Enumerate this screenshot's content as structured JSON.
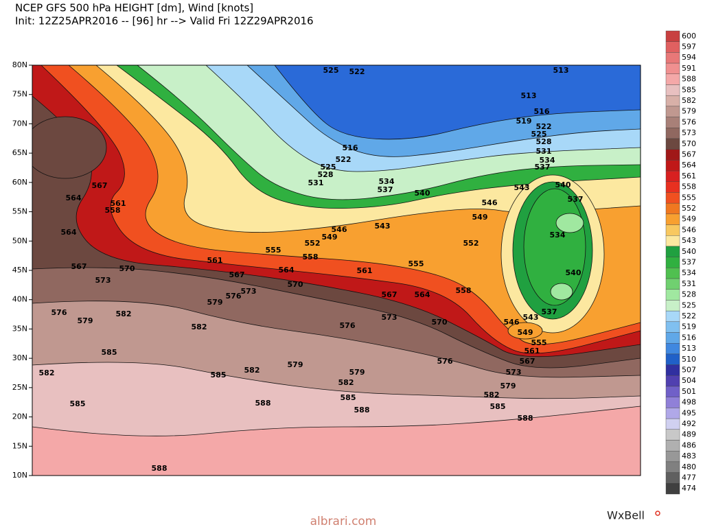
{
  "header": {
    "title": "NCEP GFS 500 hPa HEIGHT [dm], Wind [knots]",
    "subtitle": "Init: 12Z25APR2016 -- [96] hr --> Valid Fri 12Z29APR2016"
  },
  "latitudes": [
    "80N",
    "75N",
    "70N",
    "65N",
    "60N",
    "55N",
    "50N",
    "45N",
    "40N",
    "35N",
    "30N",
    "25N",
    "20N",
    "15N",
    "10N"
  ],
  "colorbar": {
    "levels": [
      600,
      597,
      594,
      591,
      588,
      585,
      582,
      579,
      576,
      573,
      570,
      567,
      564,
      561,
      558,
      555,
      552,
      549,
      546,
      543,
      540,
      537,
      534,
      531,
      528,
      525,
      522,
      519,
      516,
      513,
      510,
      507,
      504,
      501,
      498,
      495,
      492,
      489,
      486,
      483,
      480,
      477,
      474
    ],
    "colors": [
      "#c84040",
      "#e06060",
      "#e87878",
      "#f09090",
      "#f4a8a8",
      "#e8c0c0",
      "#d8b0a8",
      "#c09890",
      "#a88078",
      "#906860",
      "#6c4840",
      "#a01818",
      "#c01818",
      "#d82020",
      "#e83020",
      "#f05020",
      "#f07820",
      "#f8a030",
      "#f8c860",
      "#fce8a0",
      "#20a040",
      "#30b040",
      "#50c050",
      "#70d070",
      "#a0e8a0",
      "#c8f0c8",
      "#a8d8f8",
      "#80c0f0",
      "#60a8e8",
      "#4088e0",
      "#2060c8",
      "#3030a0",
      "#5040b0",
      "#7060c8",
      "#9080d8",
      "#b0a8e8",
      "#d0d0f0",
      "#c8c8c8",
      "#b0b0b0",
      "#989898",
      "#808080",
      "#606060",
      "#404040"
    ]
  },
  "contour_labels": [
    525,
    522,
    513,
    513,
    516,
    519,
    522,
    525,
    528,
    531,
    534,
    537,
    516,
    522,
    525,
    528,
    531,
    534,
    537,
    540,
    543,
    540,
    537,
    546,
    549,
    543,
    546,
    549,
    552,
    552,
    555,
    558,
    555,
    561,
    564,
    561,
    567,
    570,
    570,
    573,
    573,
    576,
    579,
    567,
    564,
    558,
    570,
    573,
    576,
    567,
    564,
    567,
    564,
    561,
    558,
    576,
    579,
    582,
    582,
    585,
    582,
    585,
    582,
    579,
    579,
    582,
    585,
    588,
    588,
    585,
    588,
    576,
    573,
    579,
    582,
    585,
    588,
    543,
    546,
    549,
    555,
    561,
    567,
    537,
    534,
    540
  ],
  "footer": {
    "site": "albrari.com",
    "brand": "WxBell"
  }
}
